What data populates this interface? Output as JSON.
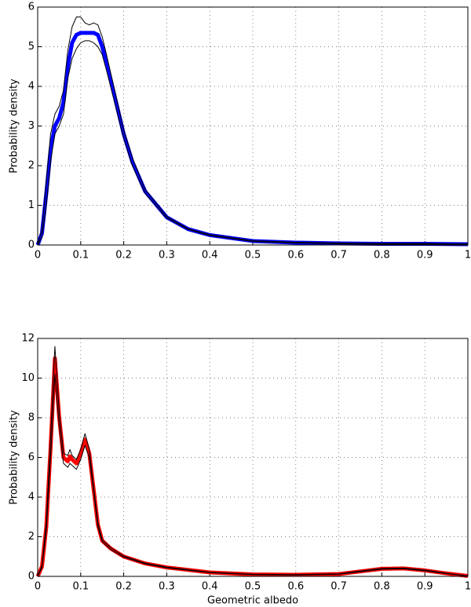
{
  "chart_data": [
    {
      "type": "line",
      "x": [
        0,
        0.01,
        0.02,
        0.03,
        0.04,
        0.05,
        0.06,
        0.07,
        0.08,
        0.09,
        0.1,
        0.11,
        0.12,
        0.13,
        0.14,
        0.15,
        0.16,
        0.18,
        0.2,
        0.22,
        0.25,
        0.3,
        0.35,
        0.4,
        0.5,
        0.6,
        0.7,
        0.8,
        0.9,
        1
      ],
      "series": [
        {
          "color": "#0000ff",
          "linewidth": 5,
          "values": [
            0,
            0.3,
            1.3,
            2.4,
            3.0,
            3.2,
            3.6,
            4.5,
            5.1,
            5.3,
            5.35,
            5.35,
            5.35,
            5.35,
            5.3,
            5.0,
            4.6,
            3.7,
            2.8,
            2.1,
            1.35,
            0.7,
            0.4,
            0.25,
            0.1,
            0.06,
            0.04,
            0.03,
            0.03,
            0.02
          ]
        },
        {
          "color": "#000000",
          "linewidth": 1,
          "values": [
            0,
            0.4,
            1.6,
            2.8,
            3.3,
            3.5,
            3.9,
            4.9,
            5.5,
            5.75,
            5.75,
            5.6,
            5.55,
            5.6,
            5.55,
            5.25,
            4.8,
            3.85,
            2.9,
            2.2,
            1.4,
            0.72,
            0.41,
            0.26,
            0.11,
            0.07,
            0.05,
            0.04,
            0.04,
            0.03
          ]
        },
        {
          "color": "#000000",
          "linewidth": 1,
          "values": [
            0,
            0.2,
            1.0,
            2.1,
            2.8,
            3.0,
            3.3,
            4.2,
            4.7,
            4.95,
            5.1,
            5.15,
            5.15,
            5.1,
            5.0,
            4.8,
            4.4,
            3.55,
            2.7,
            2.0,
            1.3,
            0.68,
            0.39,
            0.24,
            0.09,
            0.05,
            0.03,
            0.02,
            0.02,
            0.01
          ]
        }
      ],
      "ylabel": "Probability density",
      "xlim": [
        0,
        1
      ],
      "xticks": [
        0,
        0.1,
        0.2,
        0.3,
        0.4,
        0.5,
        0.6,
        0.7,
        0.8,
        0.9,
        1
      ],
      "ylim": [
        0,
        6
      ],
      "yticks": [
        0,
        1,
        2,
        3,
        4,
        5,
        6
      ],
      "grid": true
    },
    {
      "type": "line",
      "x": [
        0,
        0.01,
        0.02,
        0.03,
        0.04,
        0.05,
        0.06,
        0.07,
        0.075,
        0.08,
        0.09,
        0.1,
        0.11,
        0.12,
        0.13,
        0.14,
        0.15,
        0.17,
        0.2,
        0.25,
        0.3,
        0.4,
        0.5,
        0.6,
        0.7,
        0.75,
        0.8,
        0.85,
        0.9,
        0.95,
        1
      ],
      "series": [
        {
          "color": "#ff0000",
          "linewidth": 5,
          "values": [
            0,
            0.5,
            2.5,
            6.5,
            11,
            8,
            6,
            5.8,
            6.05,
            5.9,
            5.7,
            6.2,
            6.9,
            6.2,
            4.4,
            2.6,
            1.8,
            1.4,
            1.0,
            0.65,
            0.45,
            0.2,
            0.1,
            0.08,
            0.12,
            0.25,
            0.38,
            0.4,
            0.3,
            0.15,
            0.02
          ]
        },
        {
          "color": "#000000",
          "linewidth": 1,
          "values": [
            0,
            0.55,
            2.7,
            7,
            11.6,
            8.3,
            6.2,
            6.1,
            6.4,
            6.1,
            5.9,
            6.4,
            7.2,
            6.4,
            4.5,
            2.7,
            1.85,
            1.45,
            1.03,
            0.67,
            0.47,
            0.21,
            0.11,
            0.09,
            0.13,
            0.27,
            0.4,
            0.42,
            0.32,
            0.16,
            0.02
          ]
        },
        {
          "color": "#000000",
          "linewidth": 1,
          "values": [
            0,
            0.45,
            2.3,
            6,
            10.2,
            7.6,
            5.7,
            5.5,
            5.7,
            5.6,
            5.4,
            5.9,
            6.6,
            6.0,
            4.3,
            2.5,
            1.75,
            1.35,
            0.97,
            0.63,
            0.43,
            0.19,
            0.09,
            0.07,
            0.11,
            0.23,
            0.36,
            0.38,
            0.28,
            0.14,
            0.02
          ]
        }
      ],
      "xlabel": "Geometric albedo",
      "ylabel": "Probability density",
      "xlim": [
        0,
        1
      ],
      "xticks": [
        0,
        0.1,
        0.2,
        0.3,
        0.4,
        0.5,
        0.6,
        0.7,
        0.8,
        0.9,
        1
      ],
      "ylim": [
        0,
        12
      ],
      "yticks": [
        0,
        2,
        4,
        6,
        8,
        10,
        12
      ],
      "grid": true
    }
  ]
}
